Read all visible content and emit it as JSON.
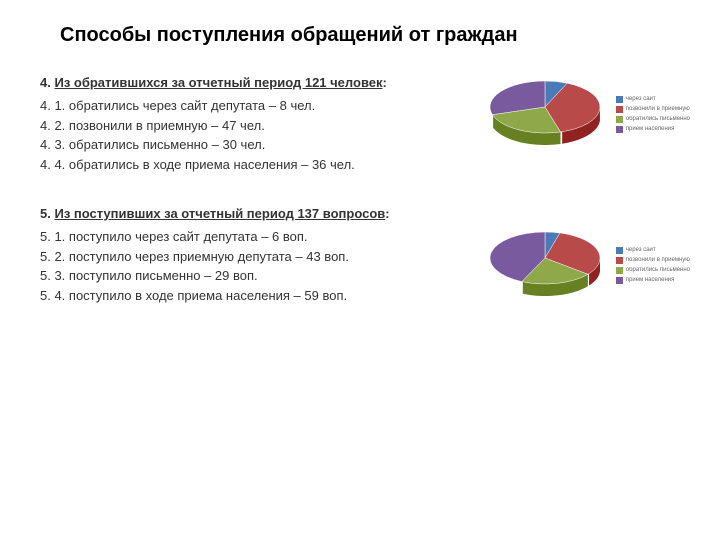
{
  "title": "Способы поступления обращений от граждан",
  "section1": {
    "head_prefix": "4. ",
    "head_underline": "Из обратившихся за отчетный период 121 человек",
    "head_suffix": ":",
    "lines": [
      " 4. 1. обратились через сайт депутата – 8 чел.",
      " 4. 2.   позвонили в приемную – 47 чел.",
      " 4. 3. обратились письменно – 30 чел.",
      " 4. 4. обратились в ходе приема населения – 36 чел."
    ]
  },
  "section2": {
    "head_prefix": "5. ",
    "head_underline": "Из поступивших за отчетный период 137 вопросов",
    "head_suffix": ":",
    "lines": [
      " 5. 1. поступило через сайт депутата – 6 воп.",
      " 5. 2. поступило через приемную депутата – 43 воп.",
      " 5. 3. поступило письменно – 29 воп.",
      " 5. 4. поступило в ходе приема населения – 59 воп."
    ]
  },
  "chart1": {
    "type": "pie3d",
    "slices": [
      {
        "label": "через сайт",
        "value": 8,
        "color": "#4a7ab8"
      },
      {
        "label": "позвонили в приемную",
        "value": 47,
        "color": "#b84a4a"
      },
      {
        "label": "обратились письменно",
        "value": 30,
        "color": "#8fa84a"
      },
      {
        "label": "прием населения",
        "value": 36,
        "color": "#7a5a9e"
      }
    ],
    "depth": 12,
    "background": "#ffffff"
  },
  "chart2": {
    "type": "pie3d",
    "slices": [
      {
        "label": "через сайт",
        "value": 6,
        "color": "#4a7ab8"
      },
      {
        "label": "позвонили в приемную",
        "value": 43,
        "color": "#b84a4a"
      },
      {
        "label": "обратились письменно",
        "value": 29,
        "color": "#8fa84a"
      },
      {
        "label": "прием населения",
        "value": 59,
        "color": "#7a5a9e"
      }
    ],
    "depth": 12,
    "background": "#ffffff"
  }
}
